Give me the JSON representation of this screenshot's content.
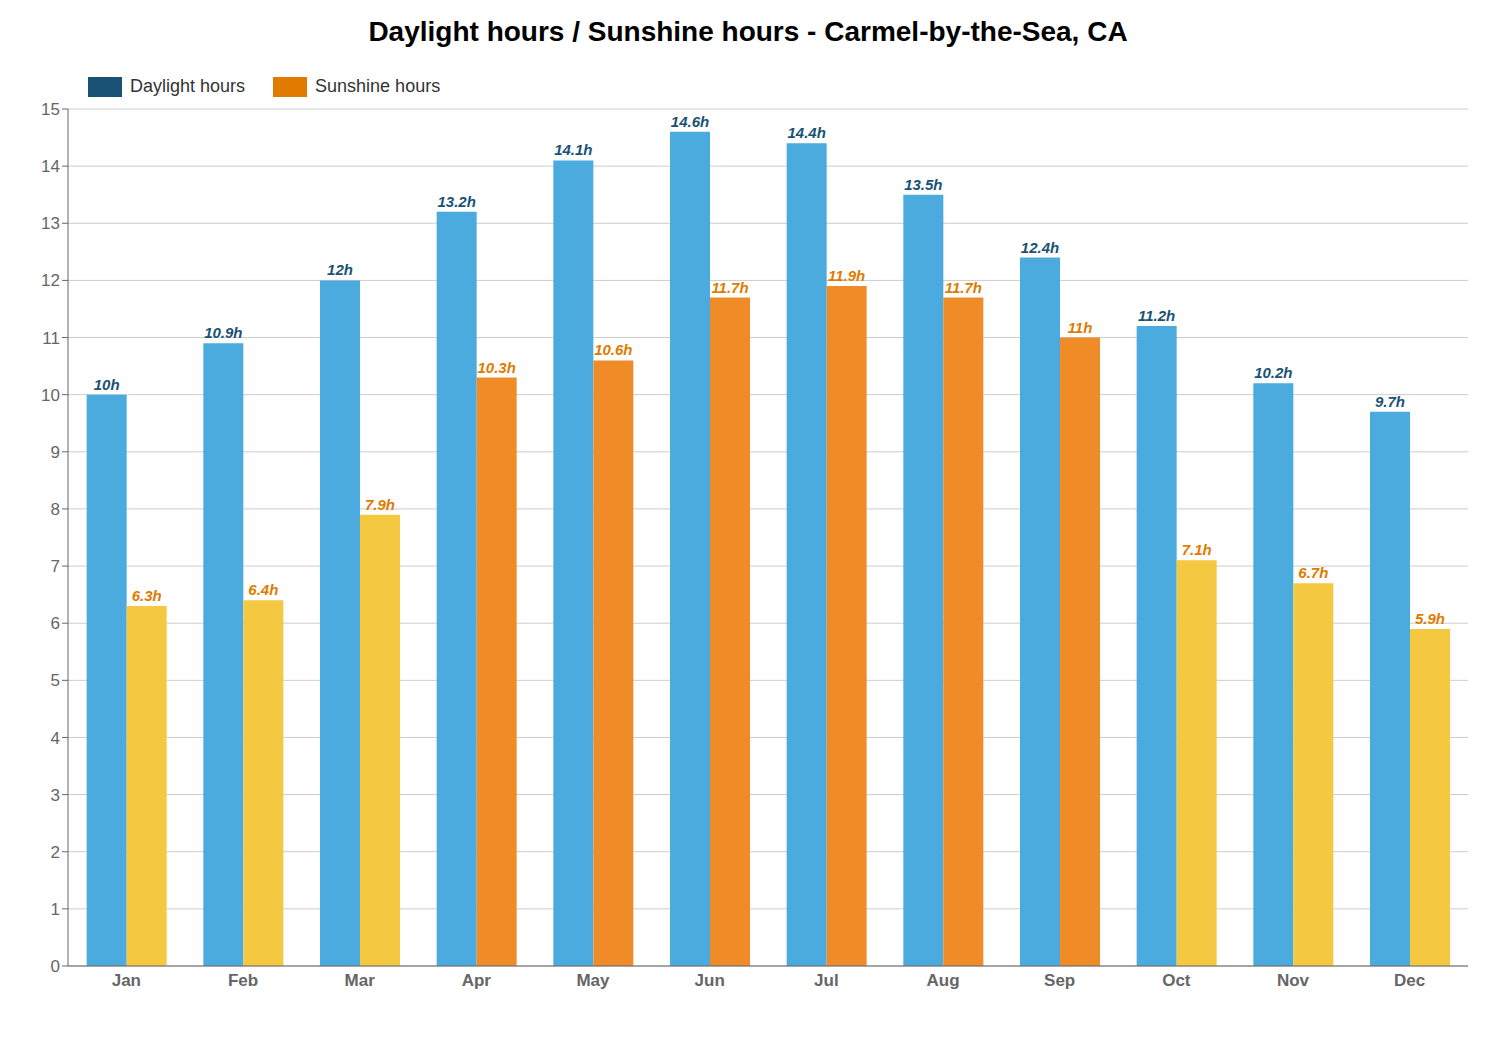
{
  "chart_data": {
    "type": "bar",
    "title": "Daylight hours / Sunshine hours - Carmel-by-the-Sea, CA",
    "categories": [
      "Jan",
      "Feb",
      "Mar",
      "Apr",
      "May",
      "Jun",
      "Jul",
      "Aug",
      "Sep",
      "Oct",
      "Nov",
      "Dec"
    ],
    "series": [
      {
        "name": "Daylight hours",
        "color": "#1a5276",
        "colors": [
          "#4baade",
          "#4baade",
          "#4baade",
          "#4baade",
          "#4baade",
          "#4baade",
          "#4baade",
          "#4baade",
          "#4baade",
          "#4baade",
          "#4baade",
          "#4baade"
        ],
        "values": [
          10.0,
          10.9,
          12.0,
          13.2,
          14.1,
          14.6,
          14.4,
          13.5,
          12.4,
          11.2,
          10.2,
          9.7
        ],
        "value_labels": [
          "10h",
          "10.9h",
          "12h",
          "13.2h",
          "14.1h",
          "14.6h",
          "14.4h",
          "13.5h",
          "12.4h",
          "11.2h",
          "10.2h",
          "9.7h"
        ]
      },
      {
        "name": "Sunshine hours",
        "color": "#e07b00",
        "colors": [
          "#f5c842",
          "#f5c842",
          "#f5c842",
          "#f08c28",
          "#f08c28",
          "#f08c28",
          "#f08c28",
          "#f08c28",
          "#f08c28",
          "#f5c842",
          "#f5c842",
          "#f5c842"
        ],
        "values": [
          6.3,
          6.4,
          7.9,
          10.3,
          10.6,
          11.7,
          11.9,
          11.7,
          11.0,
          7.1,
          6.7,
          5.9
        ],
        "value_labels": [
          "6.3h",
          "6.4h",
          "7.9h",
          "10.3h",
          "10.6h",
          "11.7h",
          "11.9h",
          "11.7h",
          "11h",
          "7.1h",
          "6.7h",
          "5.9h"
        ]
      }
    ],
    "ylim": [
      0,
      15
    ],
    "yticks": [
      0,
      1,
      2,
      3,
      4,
      5,
      6,
      7,
      8,
      9,
      10,
      11,
      12,
      13,
      14,
      15
    ],
    "grid": true,
    "legend": "upper left",
    "data_labels": true
  }
}
